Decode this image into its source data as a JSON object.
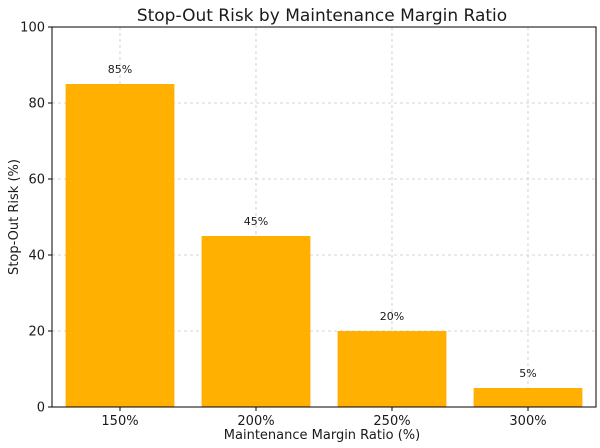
{
  "chart_data": {
    "type": "bar",
    "title": "Stop-Out Risk by Maintenance Margin Ratio",
    "xlabel": "Maintenance Margin Ratio (%)",
    "ylabel": "Stop-Out Risk (%)",
    "categories": [
      "150%",
      "200%",
      "250%",
      "300%"
    ],
    "values": [
      85,
      45,
      20,
      5
    ],
    "data_labels": [
      "85%",
      "45%",
      "20%",
      "5%"
    ],
    "ylim": [
      0,
      100
    ],
    "yticks": [
      0,
      20,
      40,
      60,
      80,
      100
    ],
    "grid": true,
    "bar_color": "#FFB000"
  }
}
